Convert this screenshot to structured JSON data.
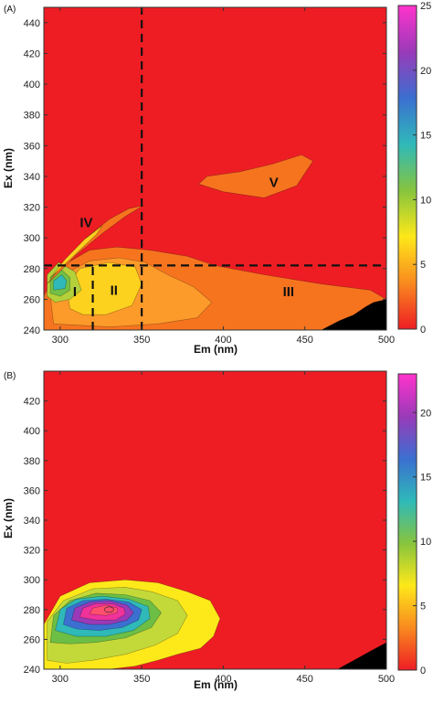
{
  "chart_data": [
    {
      "type": "heatmap",
      "subtype": "filled-contour",
      "panel_label": "(A)",
      "xlabel": "Em (nm)",
      "ylabel": "Ex (nm)",
      "xlim": [
        290,
        500
      ],
      "ylim": [
        240,
        450
      ],
      "xticks": [
        300,
        350,
        400,
        450,
        500
      ],
      "yticks": [
        240,
        260,
        280,
        300,
        320,
        340,
        360,
        380,
        400,
        420,
        440
      ],
      "colorbar": {
        "range": [
          0,
          25
        ],
        "ticks": [
          0,
          5,
          10,
          15,
          20,
          25
        ],
        "colors": [
          "#ee1d24",
          "#f98a1f",
          "#fde81a",
          "#86c43e",
          "#2fb9b9",
          "#3b6fd0",
          "#9a3ab8",
          "#ff33cc"
        ]
      },
      "background_color": "#ee1d24",
      "divider_lines": [
        {
          "orientation": "horizontal",
          "ex": 282,
          "style": "dashed"
        },
        {
          "orientation": "vertical",
          "em": 320,
          "ex_range": [
            240,
            282
          ],
          "style": "dashed"
        },
        {
          "orientation": "vertical",
          "em": 350,
          "ex_range": [
            240,
            450
          ],
          "style": "dashed"
        }
      ],
      "regions": [
        {
          "label": "I",
          "em": 309,
          "ex": 265
        },
        {
          "label": "II",
          "em": 333,
          "ex": 266
        },
        {
          "label": "III",
          "em": 440,
          "ex": 265
        },
        {
          "label": "IV",
          "em": 316,
          "ex": 310
        },
        {
          "label": "V",
          "em": 431,
          "ex": 336
        }
      ],
      "contour_regions": [
        {
          "level": 2,
          "color": "#f7741f",
          "points": [
            [
              290,
              240
            ],
            [
              290,
              262
            ],
            [
              296,
              275
            ],
            [
              305,
              284
            ],
            [
              318,
              292
            ],
            [
              335,
              294
            ],
            [
              355,
              292
            ],
            [
              378,
              288
            ],
            [
              395,
              282
            ],
            [
              425,
              276
            ],
            [
              460,
              270
            ],
            [
              490,
              266
            ],
            [
              500,
              260
            ],
            [
              500,
              240
            ]
          ]
        },
        {
          "level": 3,
          "color": "#fc9a2a",
          "points": [
            [
              296,
              244
            ],
            [
              294,
              262
            ],
            [
              302,
              276
            ],
            [
              318,
              285
            ],
            [
              336,
              287
            ],
            [
              352,
              284
            ],
            [
              366,
              276
            ],
            [
              382,
              268
            ],
            [
              393,
              258
            ],
            [
              384,
              248
            ],
            [
              360,
              244
            ],
            [
              330,
              242
            ]
          ]
        },
        {
          "level": 4,
          "color": "#fdd21f",
          "points": [
            [
              306,
              254
            ],
            [
              304,
              268
            ],
            [
              312,
              280
            ],
            [
              330,
              284
            ],
            [
              346,
              281
            ],
            [
              350,
              270
            ],
            [
              344,
              256
            ],
            [
              328,
              250
            ],
            [
              314,
              250
            ]
          ]
        },
        {
          "level": 7,
          "color": "#b4d03a",
          "points": [
            [
              292,
              262
            ],
            [
              292,
              276
            ],
            [
              299,
              284
            ],
            [
              309,
              278
            ],
            [
              313,
              266
            ],
            [
              306,
              260
            ],
            [
              297,
              258
            ]
          ]
        },
        {
          "level": 9,
          "color": "#73c046",
          "points": [
            [
              294,
              264
            ],
            [
              294,
              274
            ],
            [
              300,
              280
            ],
            [
              306,
              274
            ],
            [
              306,
              266
            ],
            [
              300,
              262
            ]
          ]
        },
        {
          "level": 13,
          "color": "#2fb9b9",
          "points": [
            [
              296,
              266
            ],
            [
              296,
              272
            ],
            [
              301,
              276
            ],
            [
              304,
              272
            ],
            [
              303,
              267
            ]
          ]
        },
        {
          "level": 2,
          "color": "#f7741f",
          "points": [
            [
              292,
              270
            ],
            [
              301,
              282
            ],
            [
              316,
              300
            ],
            [
              330,
              312
            ],
            [
              342,
              319
            ],
            [
              351,
              321
            ],
            [
              340,
              314
            ],
            [
              326,
              303
            ],
            [
              310,
              289
            ],
            [
              298,
              276
            ]
          ]
        },
        {
          "level": 4,
          "color": "#fdd21f",
          "points": [
            [
              294,
              274
            ],
            [
              303,
              286
            ],
            [
              315,
              299
            ],
            [
              326,
              308
            ],
            [
              322,
              302
            ],
            [
              310,
              290
            ],
            [
              300,
              280
            ]
          ]
        },
        {
          "level": 2,
          "color": "#f7741f",
          "points": [
            [
              385,
              335
            ],
            [
              400,
              330
            ],
            [
              425,
              326
            ],
            [
              445,
              334
            ],
            [
              455,
              350
            ],
            [
              448,
              354
            ],
            [
              430,
              348
            ],
            [
              410,
              343
            ],
            [
              390,
              340
            ]
          ]
        }
      ],
      "zero_region": {
        "color": "#000000",
        "points": [
          [
            460,
            240
          ],
          [
            471,
            246
          ],
          [
            480,
            250
          ],
          [
            487,
            255
          ],
          [
            492,
            258
          ],
          [
            500,
            260
          ],
          [
            500,
            240
          ]
        ]
      }
    },
    {
      "type": "heatmap",
      "subtype": "filled-contour",
      "panel_label": "(B)",
      "xlabel": "Em (nm)",
      "ylabel": "Ex (nm)",
      "xlim": [
        290,
        500
      ],
      "ylim": [
        240,
        440
      ],
      "xticks": [
        300,
        350,
        400,
        450,
        500
      ],
      "yticks": [
        240,
        260,
        280,
        300,
        320,
        340,
        360,
        380,
        400,
        420
      ],
      "colorbar": {
        "range": [
          0,
          23
        ],
        "ticks": [
          0,
          5,
          10,
          15,
          20
        ],
        "colors": [
          "#ee1d24",
          "#f98a1f",
          "#fde81a",
          "#86c43e",
          "#2fb9b9",
          "#3b6fd0",
          "#9a3ab8",
          "#ff33cc"
        ]
      },
      "background_color": "#ee1d24",
      "peak": {
        "em": 330,
        "ex": 280
      },
      "contour_regions": [
        {
          "level": 2.5,
          "color": "#fde81a",
          "points": [
            [
              290,
              240
            ],
            [
              290,
              270
            ],
            [
              300,
              289
            ],
            [
              318,
              298
            ],
            [
              340,
              300
            ],
            [
              360,
              298
            ],
            [
              378,
              292
            ],
            [
              392,
              286
            ],
            [
              398,
              274
            ],
            [
              394,
              262
            ],
            [
              386,
              254
            ],
            [
              372,
              250
            ],
            [
              360,
              246
            ],
            [
              346,
              242
            ],
            [
              330,
              240
            ]
          ]
        },
        {
          "level": 5,
          "color": "#c3d93a",
          "points": [
            [
              292,
              246
            ],
            [
              292,
              272
            ],
            [
              302,
              286
            ],
            [
              320,
              294
            ],
            [
              340,
              295
            ],
            [
              356,
              292
            ],
            [
              372,
              286
            ],
            [
              378,
              276
            ],
            [
              372,
              264
            ],
            [
              358,
              256
            ],
            [
              340,
              250
            ],
            [
              320,
              246
            ],
            [
              304,
              244
            ]
          ]
        },
        {
          "level": 7.5,
          "color": "#6cbe45",
          "points": [
            [
              294,
              258
            ],
            [
              296,
              276
            ],
            [
              306,
              286
            ],
            [
              322,
              291
            ],
            [
              340,
              290
            ],
            [
              355,
              286
            ],
            [
              362,
              278
            ],
            [
              356,
              268
            ],
            [
              340,
              261
            ],
            [
              322,
              258
            ],
            [
              306,
              257
            ]
          ]
        },
        {
          "level": 10,
          "color": "#2fb9b9",
          "points": [
            [
              297,
              266
            ],
            [
              300,
              280
            ],
            [
              310,
              287
            ],
            [
              326,
              289
            ],
            [
              342,
              287
            ],
            [
              354,
              282
            ],
            [
              355,
              274
            ],
            [
              345,
              266
            ],
            [
              328,
              262
            ],
            [
              310,
              262
            ]
          ]
        },
        {
          "level": 13,
          "color": "#3b6fd0",
          "points": [
            [
              302,
              270
            ],
            [
              304,
              281
            ],
            [
              314,
              286
            ],
            [
              328,
              287
            ],
            [
              342,
              285
            ],
            [
              350,
              280
            ],
            [
              348,
              273
            ],
            [
              338,
              268
            ],
            [
              324,
              266
            ],
            [
              310,
              267
            ]
          ]
        },
        {
          "level": 16,
          "color": "#9a3ab8",
          "points": [
            [
              307,
              273
            ],
            [
              309,
              281
            ],
            [
              318,
              285
            ],
            [
              330,
              286
            ],
            [
              341,
              283
            ],
            [
              345,
              278
            ],
            [
              341,
              273
            ],
            [
              330,
              270
            ],
            [
              318,
              270
            ]
          ]
        },
        {
          "level": 19,
          "color": "#f0339a",
          "points": [
            [
              312,
              275
            ],
            [
              314,
              281
            ],
            [
              322,
              284
            ],
            [
              332,
              284
            ],
            [
              339,
              281
            ],
            [
              340,
              277
            ],
            [
              334,
              273
            ],
            [
              322,
              273
            ]
          ]
        },
        {
          "level": 21,
          "color": "#ff4f6e",
          "points": [
            [
              318,
              277
            ],
            [
              320,
              281
            ],
            [
              328,
              283
            ],
            [
              335,
              281
            ],
            [
              335,
              278
            ],
            [
              328,
              276
            ]
          ]
        }
      ],
      "zero_region": {
        "color": "#000000",
        "points": [
          [
            470,
            240
          ],
          [
            480,
            246
          ],
          [
            490,
            252
          ],
          [
            500,
            258
          ],
          [
            500,
            240
          ]
        ]
      }
    }
  ]
}
